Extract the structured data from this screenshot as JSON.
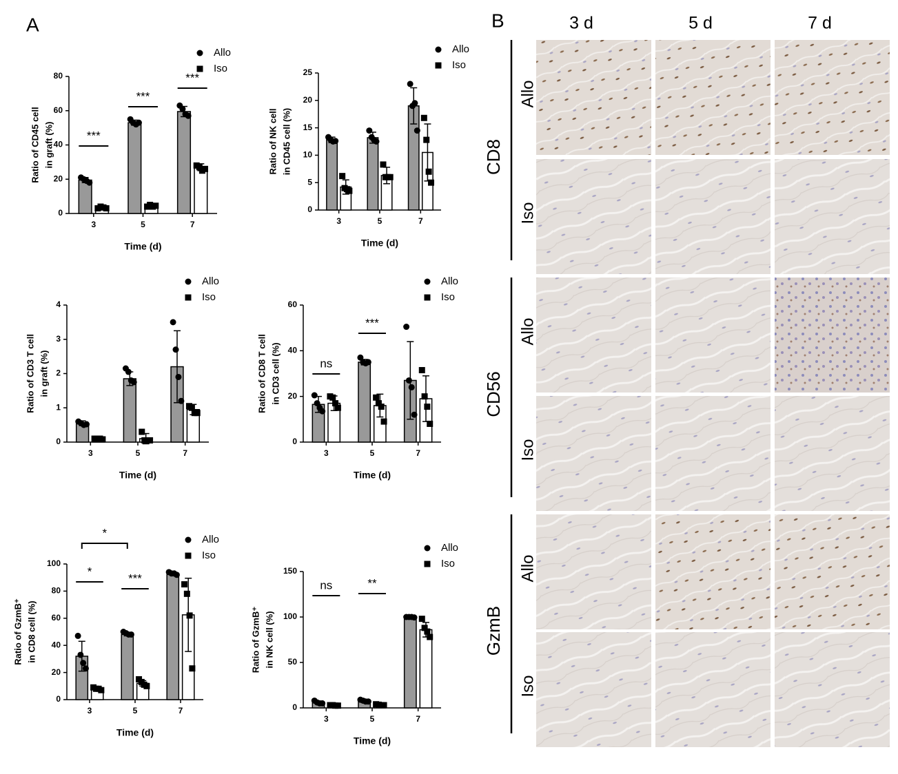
{
  "panel_labels": [
    "A",
    "B"
  ],
  "chart_data": [
    {
      "type": "bar",
      "ylabel": [
        "Ratio of CD45  cell",
        "in graft (%)"
      ],
      "xlabel": "Time (d)",
      "categories": [
        "3",
        "5",
        "7"
      ],
      "ylim": [
        0,
        80
      ],
      "yticks": [
        0,
        20,
        40,
        60,
        80
      ],
      "series": [
        {
          "name": "Allo",
          "color": "#999999",
          "marker": "circle",
          "values": [
            19.5,
            53,
            59.5
          ],
          "error": [
            1.5,
            1.5,
            3
          ],
          "points": [
            [
              21,
              20,
              19,
              18
            ],
            [
              55,
              53,
              52,
              53
            ],
            [
              63,
              61,
              58,
              57
            ]
          ]
        },
        {
          "name": "Iso",
          "color": "#ffffff",
          "marker": "square",
          "values": [
            3.5,
            4.5,
            27
          ],
          "error": [
            0.5,
            0.5,
            2
          ],
          "points": [
            [
              3,
              4,
              3.5,
              3
            ],
            [
              4,
              5,
              4,
              4.5
            ],
            [
              28,
              27,
              25,
              26
            ]
          ]
        }
      ],
      "annotations": [
        {
          "text": "***",
          "categories": [
            "3"
          ]
        },
        {
          "text": "***",
          "categories": [
            "5"
          ]
        },
        {
          "text": "***",
          "categories": [
            "7"
          ]
        }
      ]
    },
    {
      "type": "bar",
      "ylabel": [
        "Ratio of NK cell",
        "in CD45 cell (%)"
      ],
      "xlabel": "Time (d)",
      "categories": [
        "3",
        "5",
        "7"
      ],
      "ylim": [
        0,
        25
      ],
      "yticks": [
        0,
        5,
        10,
        15,
        20,
        25
      ],
      "series": [
        {
          "name": "Allo",
          "color": "#999999",
          "marker": "circle",
          "values": [
            12.8,
            13.2,
            19
          ],
          "error": [
            0.5,
            1,
            3.3
          ],
          "points": [
            [
              13.3,
              12.8,
              12.5,
              12.6
            ],
            [
              14.5,
              13.3,
              12.8,
              12.5
            ],
            [
              23,
              19,
              19.5,
              14.5
            ]
          ]
        },
        {
          "name": "Iso",
          "color": "#ffffff",
          "marker": "square",
          "values": [
            4.2,
            6.3,
            10.5
          ],
          "error": [
            1.3,
            1.5,
            5.2
          ],
          "points": [
            [
              6.2,
              4,
              3.8,
              3.5
            ],
            [
              8.3,
              6,
              6,
              6
            ],
            [
              16.8,
              12.8,
              7,
              5
            ]
          ]
        }
      ],
      "annotations": []
    },
    {
      "type": "bar",
      "ylabel": [
        "Ratio of CD3 T cell",
        "in graft (%)"
      ],
      "xlabel": "Time (d)",
      "categories": [
        "3",
        "5",
        "7"
      ],
      "ylim": [
        0,
        4
      ],
      "yticks": [
        0,
        1,
        2,
        3,
        4
      ],
      "series": [
        {
          "name": "Allo",
          "color": "#999999",
          "marker": "circle",
          "values": [
            0.55,
            1.85,
            2.2
          ],
          "error": [
            0.07,
            0.2,
            1.05
          ],
          "points": [
            [
              0.6,
              0.55,
              0.5,
              0.52
            ],
            [
              2.15,
              2.05,
              1.8,
              1.75
            ],
            [
              3.5,
              2.7,
              1.9,
              1.2
            ]
          ]
        },
        {
          "name": "Iso",
          "color": "#ffffff",
          "marker": "square",
          "values": [
            0.1,
            0.1,
            0.95
          ],
          "error": [
            0.02,
            0.15,
            0.15
          ],
          "points": [
            [
              0.1,
              0.1,
              0.1,
              0.08
            ],
            [
              0.3,
              0.05,
              0.05,
              0.05
            ],
            [
              1.05,
              1.0,
              0.85,
              0.85
            ]
          ]
        }
      ],
      "annotations": []
    },
    {
      "type": "bar",
      "ylabel": [
        "Ratio of CD8 T cell",
        "in CD3 cell (%)"
      ],
      "xlabel": "Time (d)",
      "categories": [
        "3",
        "5",
        "7"
      ],
      "ylim": [
        0,
        60
      ],
      "yticks": [
        0,
        20,
        40,
        60
      ],
      "series": [
        {
          "name": "Allo",
          "color": "#999999",
          "marker": "circle",
          "values": [
            16.5,
            35,
            27
          ],
          "error": [
            3.5,
            1.2,
            17
          ],
          "points": [
            [
              20.5,
              17,
              15,
              13.5
            ],
            [
              37,
              35,
              34.5,
              35
            ],
            [
              50.5,
              27,
              24,
              12
            ]
          ]
        },
        {
          "name": "Iso",
          "color": "#ffffff",
          "marker": "square",
          "values": [
            17,
            16,
            19
          ],
          "error": [
            3.2,
            5,
            10
          ],
          "points": [
            [
              20,
              19.5,
              17,
              15
            ],
            [
              19.5,
              17,
              15.5,
              9
            ],
            [
              31.5,
              20,
              15.5,
              8
            ]
          ]
        }
      ],
      "annotations": [
        {
          "text": "ns",
          "categories": [
            "3"
          ]
        },
        {
          "text": "***",
          "categories": [
            "5"
          ]
        }
      ]
    },
    {
      "type": "bar",
      "ylabel": [
        "Ratio of GzmB⁺",
        "in CD8 cell (%)"
      ],
      "xlabel": "Time (d)",
      "categories": [
        "3",
        "5",
        "7"
      ],
      "ylim": [
        0,
        100
      ],
      "yticks": [
        0,
        20,
        40,
        60,
        80,
        100
      ],
      "series": [
        {
          "name": "Allo",
          "color": "#999999",
          "marker": "circle",
          "values": [
            32,
            48,
            93
          ],
          "error": [
            11,
            1,
            1
          ],
          "points": [
            [
              47,
              33,
              27,
              23
            ],
            [
              50,
              49,
              48,
              48
            ],
            [
              94,
              93,
              93,
              92
            ]
          ]
        },
        {
          "name": "Iso",
          "color": "#ffffff",
          "marker": "square",
          "values": [
            8,
            12,
            62.5
          ],
          "error": [
            1.5,
            2,
            27
          ],
          "points": [
            [
              9,
              8,
              8,
              7
            ],
            [
              15,
              13,
              11,
              10
            ],
            [
              85,
              78,
              62,
              23
            ]
          ]
        }
      ],
      "annotations": [
        {
          "text": "*",
          "categories": [
            "3"
          ]
        },
        {
          "text": "***",
          "categories": [
            "5"
          ]
        },
        {
          "text": "*",
          "categories": [
            "3",
            "5"
          ]
        }
      ]
    },
    {
      "type": "bar",
      "ylabel": [
        "Ratio of GzmB⁺",
        "in NK cell (%)"
      ],
      "xlabel": "Time (d)",
      "categories": [
        "3",
        "5",
        "7"
      ],
      "ylim": [
        0,
        150
      ],
      "yticks": [
        0,
        50,
        100,
        150
      ],
      "series": [
        {
          "name": "Allo",
          "color": "#999999",
          "marker": "circle",
          "values": [
            6,
            7.5,
            100
          ],
          "error": [
            1.5,
            1.5,
            0.5
          ],
          "points": [
            [
              8,
              6,
              5,
              5
            ],
            [
              9,
              8,
              7,
              7
            ],
            [
              100,
              100,
              100,
              99.5
            ]
          ]
        },
        {
          "name": "Iso",
          "color": "#ffffff",
          "marker": "square",
          "values": [
            3,
            3.5,
            86
          ],
          "error": [
            0.8,
            0.8,
            8
          ],
          "points": [
            [
              3,
              3,
              2.5,
              2.5
            ],
            [
              4,
              3.5,
              3,
              3
            ],
            [
              98,
              88,
              84,
              78
            ]
          ]
        }
      ],
      "annotations": [
        {
          "text": "ns",
          "categories": [
            "3"
          ]
        },
        {
          "text": "**",
          "categories": [
            "5"
          ]
        }
      ]
    }
  ],
  "histology": {
    "columns": [
      "3 d",
      "5 d",
      "7 d"
    ],
    "stains": [
      {
        "name": "CD8",
        "groups": [
          "Allo",
          "Iso"
        ]
      },
      {
        "name": "CD56",
        "groups": [
          "Allo",
          "Iso"
        ]
      },
      {
        "name": "GzmB",
        "groups": [
          "Allo",
          "Iso"
        ]
      }
    ]
  }
}
